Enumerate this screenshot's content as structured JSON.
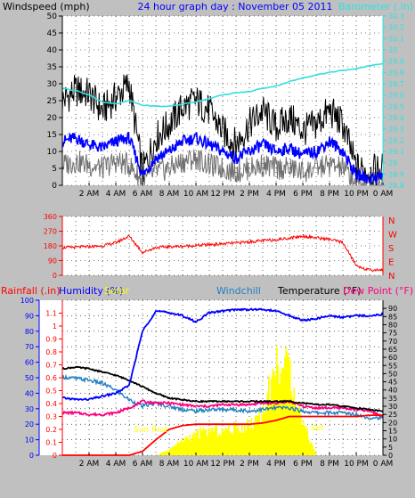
{
  "header": {
    "left_label": "Windspeed (mph)",
    "center_label": "24 hour graph day : November 05 2011",
    "right_label": "Barometer (.in)"
  },
  "x_ticks": [
    "2 AM",
    "4 AM",
    "6 AM",
    "8 AM",
    "10 AM",
    "12 PM",
    "2 PM",
    "4 PM",
    "6 PM",
    "8 PM",
    "10 PM",
    "0 AM"
  ],
  "colors": {
    "background": "#c0c0c0",
    "plot": "#ffffff",
    "wind_gust": "#000000",
    "wind_avg": "#0000ff",
    "wind_low": "#707070",
    "barometer": "#30e0e0",
    "direction": "#ff0000",
    "rainfall": "#ff0000",
    "humidity": "#0000ff",
    "solar": "#ffff00",
    "windchill": "#2080c0",
    "temperature": "#000000",
    "dewpoint": "#ff0080"
  },
  "direction_labels": [
    "N",
    "W",
    "S",
    "E",
    "N"
  ],
  "bottom_legend": {
    "rainfall": "Rainfall (.in)",
    "humidity": "Humidity (%)",
    "solar": "Solar",
    "windchill": "Windchill",
    "temperature": "Temperature (°F)",
    "dewpoint": "Dew Point (°F)"
  },
  "annotations": {
    "sunrise": "Sun Rise",
    "sunset": "Sun Set"
  },
  "chart_data": [
    {
      "type": "line",
      "y_left": {
        "min": 0,
        "max": 50,
        "ticks": [
          0,
          5,
          10,
          15,
          20,
          25,
          30,
          35,
          40,
          45,
          50
        ]
      },
      "y_right": {
        "min": 28.8,
        "max": 30.3,
        "ticks": [
          "28.8",
          "28.9",
          "29",
          "29.1",
          "29.2",
          "29.3",
          "29.4",
          "29.5",
          "29.6",
          "29.7",
          "29.8",
          "29.9",
          "30",
          "30.1",
          "30.2",
          "30.3"
        ]
      },
      "x_hours": [
        0,
        1,
        2,
        3,
        4,
        5,
        6,
        7,
        8,
        9,
        10,
        11,
        12,
        13,
        14,
        15,
        16,
        17,
        18,
        19,
        20,
        21,
        22,
        23,
        24
      ],
      "series": [
        {
          "name": "Windspeed (mph)",
          "key": "wind_gust",
          "values": [
            25,
            28,
            27,
            22,
            26,
            30,
            4,
            14,
            18,
            23,
            25,
            22,
            16,
            12,
            18,
            22,
            17,
            20,
            16,
            18,
            22,
            18,
            5,
            4,
            5
          ]
        },
        {
          "name": "",
          "key": "wind_avg",
          "values": [
            13,
            14,
            12,
            11,
            13,
            14,
            3,
            8,
            10,
            13,
            14,
            12,
            10,
            8,
            10,
            12,
            10,
            11,
            9,
            10,
            13,
            10,
            3,
            2,
            3
          ]
        },
        {
          "name": "",
          "key": "wind_low",
          "values": [
            6,
            7,
            6,
            5,
            7,
            6,
            1,
            4,
            5,
            7,
            8,
            6,
            5,
            4,
            5,
            6,
            5,
            5,
            4,
            5,
            6,
            5,
            1,
            1,
            1
          ]
        },
        {
          "name": "Barometer (.in)",
          "key": "barometer",
          "values": [
            29.66,
            29.64,
            29.6,
            29.54,
            29.52,
            29.55,
            29.51,
            29.5,
            29.5,
            29.52,
            29.54,
            29.57,
            29.6,
            29.62,
            29.63,
            29.66,
            29.68,
            29.72,
            29.75,
            29.78,
            29.8,
            29.82,
            29.83,
            29.86,
            29.88
          ]
        }
      ]
    },
    {
      "type": "line",
      "y_left": {
        "min": 0,
        "max": 360,
        "ticks": [
          0,
          90,
          180,
          270,
          360
        ]
      },
      "x_hours": [
        0,
        1,
        2,
        3,
        4,
        5,
        6,
        7,
        8,
        9,
        10,
        11,
        12,
        13,
        14,
        15,
        16,
        17,
        18,
        19,
        20,
        21,
        22,
        23,
        24
      ],
      "series": [
        {
          "name": "",
          "key": "direction",
          "values": [
            170,
            172,
            175,
            180,
            200,
            240,
            140,
            170,
            175,
            178,
            182,
            188,
            192,
            198,
            205,
            212,
            218,
            228,
            240,
            230,
            220,
            200,
            60,
            30,
            35
          ]
        }
      ]
    },
    {
      "type": "line",
      "y_left": {
        "min": 0,
        "max": 100,
        "ticks": [
          0,
          10,
          20,
          30,
          40,
          50,
          60,
          70,
          80,
          90,
          100
        ]
      },
      "y_rain": {
        "min": 0,
        "max": 1.2,
        "ticks": [
          "0",
          "0.1",
          "0.2",
          "0.3",
          "0.4",
          "0.5",
          "0.6",
          "0.7",
          "0.8",
          "0.9",
          "1",
          "1.1"
        ]
      },
      "y_right": {
        "min": 0,
        "max": 95,
        "ticks": [
          0,
          5,
          10,
          15,
          20,
          25,
          30,
          35,
          40,
          45,
          50,
          55,
          60,
          65,
          70,
          75,
          80,
          85,
          90
        ]
      },
      "x_hours": [
        0,
        1,
        2,
        3,
        4,
        5,
        6,
        7,
        8,
        9,
        10,
        11,
        12,
        13,
        14,
        15,
        16,
        17,
        18,
        19,
        20,
        21,
        22,
        23,
        24
      ],
      "series": [
        {
          "name": "Humidity (%)",
          "key": "humidity",
          "values": [
            37,
            36,
            36,
            38,
            40,
            45,
            80,
            93,
            92,
            90,
            86,
            92,
            93,
            94,
            94,
            94,
            93,
            90,
            87,
            88,
            90,
            89,
            90,
            90,
            91
          ]
        },
        {
          "name": "Temperature (°F)",
          "key": "temperature",
          "values": [
            53,
            54,
            53,
            51,
            49,
            46,
            42,
            38,
            35,
            34,
            33,
            33,
            33,
            33,
            33,
            33,
            33,
            33,
            32,
            31,
            31,
            30,
            29,
            28,
            27
          ]
        },
        {
          "name": "Windchill",
          "key": "windchill",
          "values": [
            48,
            47,
            46,
            44,
            40,
            34,
            30,
            32,
            30,
            28,
            27,
            28,
            28,
            28,
            27,
            28,
            29,
            29,
            27,
            26,
            26,
            26,
            25,
            23,
            23
          ]
        },
        {
          "name": "Dew Point (°F)",
          "key": "dewpoint",
          "values": [
            26,
            26,
            25,
            25,
            26,
            29,
            33,
            32,
            32,
            31,
            30,
            30,
            31,
            31,
            31,
            32,
            32,
            33,
            30,
            29,
            29,
            29,
            28,
            27,
            24
          ]
        },
        {
          "name": "Rainfall (.in)",
          "key": "rainfall",
          "values": [
            0,
            0,
            0,
            0,
            0,
            0,
            0.03,
            0.12,
            0.2,
            0.23,
            0.24,
            0.24,
            0.24,
            0.24,
            0.24,
            0.25,
            0.27,
            0.3,
            0.3,
            0.3,
            0.3,
            0.3,
            0.3,
            0.31,
            0.31
          ]
        },
        {
          "name": "Solar",
          "key": "solar",
          "values": [
            0,
            0,
            0,
            0,
            0,
            0,
            0,
            0,
            4,
            10,
            14,
            16,
            16,
            18,
            20,
            30,
            60,
            55,
            20,
            0,
            0,
            0,
            0,
            0,
            0
          ]
        }
      ]
    }
  ]
}
